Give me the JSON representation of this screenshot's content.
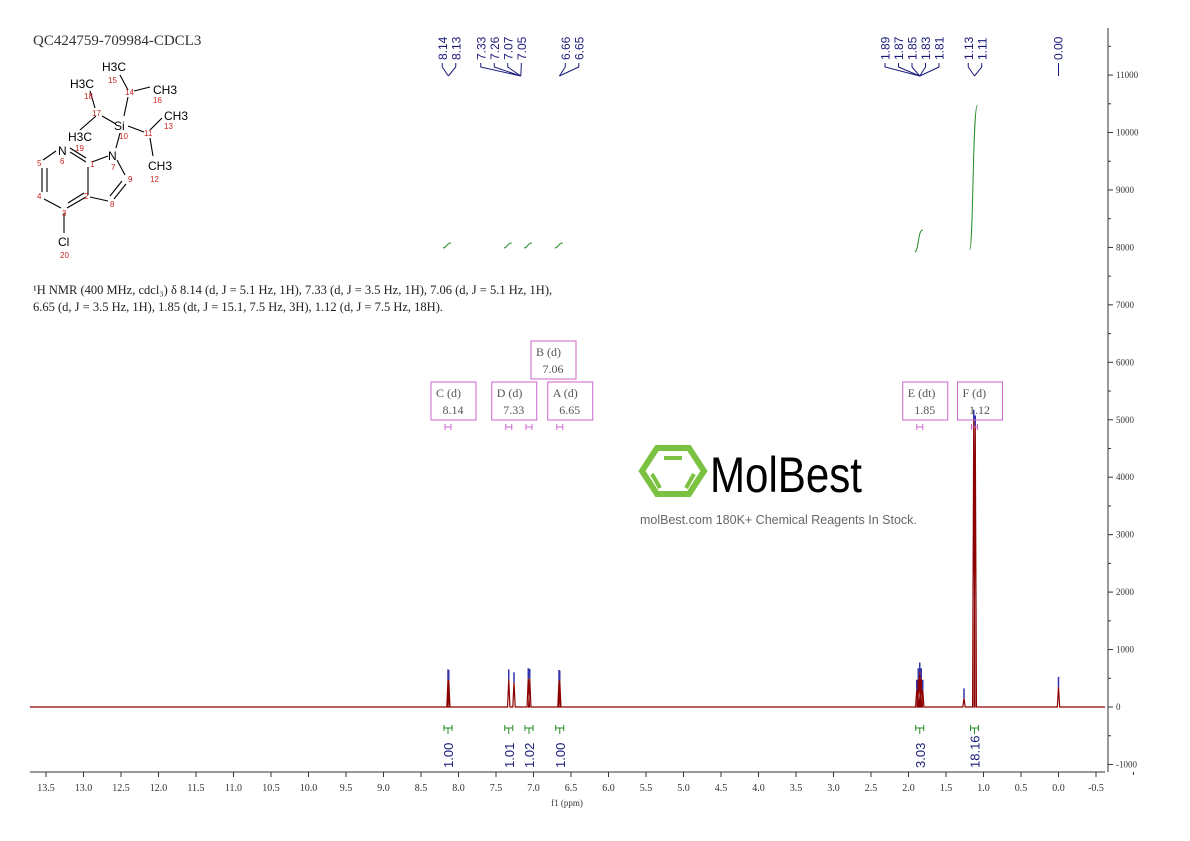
{
  "sample_id": "QC424759-709984-CDCL3",
  "description_line1": "¹H NMR (400 MHz, cdcl₃) δ 8.14 (d, J = 5.1 Hz, 1H), 7.33 (d, J = 3.5 Hz, 1H), 7.06 (d, J = 5.1 Hz, 1H),",
  "description_line2": "6.65 (d, J = 3.5 Hz, 1H), 1.85 (dt, J = 15.1, 7.5 Hz, 3H), 1.12 (d, J = 7.5 Hz, 18H).",
  "watermark": {
    "logo": "MolBest",
    "tagline": "molBest.com 180K+ Chemical Reagents In Stock.",
    "logo_color": "#7cc242"
  },
  "structure": {
    "atoms": [
      "H3C",
      "H3C",
      "CH3",
      "CH3",
      "Si",
      "H3C",
      "N",
      "N",
      "CH3",
      "Cl"
    ],
    "numbers": [
      "1",
      "2",
      "3",
      "4",
      "5",
      "6",
      "7",
      "8",
      "9",
      "10",
      "11",
      "12",
      "13",
      "14",
      "15",
      "16",
      "17",
      "18",
      "19",
      "20"
    ]
  },
  "colors": {
    "spectrum": "#8b0000",
    "integral": "#228b22",
    "peak_label": "#1a1a7a",
    "multiplet_box": "#cc66cc"
  },
  "chart_data": {
    "type": "line",
    "xlabel": "f1 (ppm)",
    "xlim": [
      13.5,
      -0.5
    ],
    "ylim": [
      -1000,
      11500
    ],
    "x_ticks": [
      "13.5",
      "13.0",
      "12.5",
      "12.0",
      "11.5",
      "11.0",
      "10.5",
      "10.0",
      "9.5",
      "9.0",
      "8.5",
      "8.0",
      "7.5",
      "7.0",
      "6.5",
      "6.0",
      "5.5",
      "5.0",
      "4.5",
      "4.0",
      "3.5",
      "3.0",
      "2.5",
      "2.0",
      "1.5",
      "1.0",
      "0.5",
      "0.0",
      "-0.5"
    ],
    "y_ticks": [
      "-1000",
      "0",
      "1000",
      "2000",
      "3000",
      "4000",
      "5000",
      "6000",
      "7000",
      "8000",
      "9000",
      "10000",
      "11000"
    ],
    "peaks": [
      {
        "ppm": 8.14,
        "intensity": 480
      },
      {
        "ppm": 8.13,
        "intensity": 470
      },
      {
        "ppm": 7.33,
        "intensity": 480
      },
      {
        "ppm": 7.26,
        "intensity": 430
      },
      {
        "ppm": 7.07,
        "intensity": 500
      },
      {
        "ppm": 7.05,
        "intensity": 490
      },
      {
        "ppm": 6.66,
        "intensity": 470
      },
      {
        "ppm": 6.65,
        "intensity": 460
      },
      {
        "ppm": 1.89,
        "intensity": 300
      },
      {
        "ppm": 1.87,
        "intensity": 500
      },
      {
        "ppm": 1.85,
        "intensity": 600
      },
      {
        "ppm": 1.83,
        "intensity": 500
      },
      {
        "ppm": 1.81,
        "intensity": 300
      },
      {
        "ppm": 1.26,
        "intensity": 150
      },
      {
        "ppm": 1.13,
        "intensity": 5000
      },
      {
        "ppm": 1.11,
        "intensity": 4900
      },
      {
        "ppm": 0.0,
        "intensity": 350
      }
    ],
    "peak_labels": [
      {
        "group": [
          "8.14",
          "8.13"
        ],
        "center": 8.135
      },
      {
        "group": [
          "7.33",
          "7.26",
          "7.07",
          "7.05"
        ],
        "center": 7.17
      },
      {
        "group": [
          "6.66",
          "6.65"
        ],
        "center": 6.655
      },
      {
        "group": [
          "1.89",
          "1.87",
          "1.85",
          "1.83",
          "1.81"
        ],
        "center": 1.85
      },
      {
        "group": [
          "1.13",
          "1.11"
        ],
        "center": 1.12
      },
      {
        "group": [
          "0.00"
        ],
        "center": 0.0
      }
    ],
    "multiplets": [
      {
        "label": "C (d)",
        "shift": "8.14",
        "ppm": 8.14
      },
      {
        "label": "D (d)",
        "shift": "7.33",
        "ppm": 7.33
      },
      {
        "label": "B (d)",
        "shift": "7.06",
        "ppm": 7.06
      },
      {
        "label": "A (d)",
        "shift": "6.65",
        "ppm": 6.65
      },
      {
        "label": "E (dt)",
        "shift": "1.85",
        "ppm": 1.85
      },
      {
        "label": "F (d)",
        "shift": "1.12",
        "ppm": 1.12
      }
    ],
    "integrals": [
      {
        "ppm": 8.14,
        "value": "1.00"
      },
      {
        "ppm": 7.33,
        "value": "1.01"
      },
      {
        "ppm": 7.06,
        "value": "1.02"
      },
      {
        "ppm": 6.65,
        "value": "1.00"
      },
      {
        "ppm": 1.85,
        "value": "3.03"
      },
      {
        "ppm": 1.12,
        "value": "18.16"
      }
    ]
  }
}
